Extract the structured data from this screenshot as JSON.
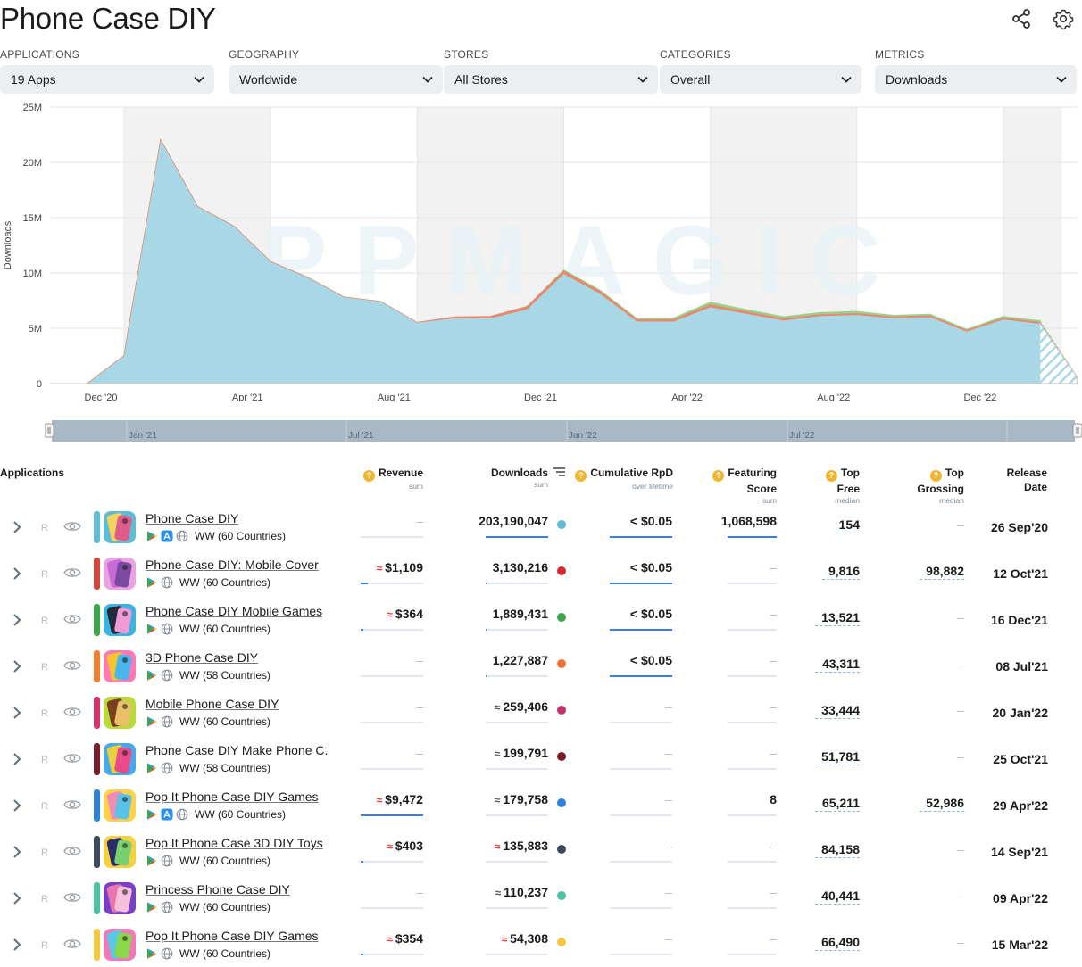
{
  "page": {
    "title": "Phone Case DIY"
  },
  "icons": {
    "share": "share-icon",
    "settings": "gear-icon"
  },
  "filters": [
    {
      "label": "APPLICATIONS",
      "value": "19 Apps"
    },
    {
      "label": "GEOGRAPHY",
      "value": "Worldwide"
    },
    {
      "label": "STORES",
      "value": "All Stores"
    },
    {
      "label": "CATEGORIES",
      "value": "Overall"
    },
    {
      "label": "METRICS",
      "value": "Downloads"
    }
  ],
  "chart_data": {
    "type": "area",
    "watermark": "APPMAGIC",
    "ylabel": "Downloads",
    "y_ticks": [
      "0",
      "5M",
      "10M",
      "15M",
      "20M",
      "25M"
    ],
    "ylim": [
      0,
      25000000
    ],
    "x_ticks": [
      "Dec '20",
      "Apr '21",
      "Aug '21",
      "Dec '21",
      "Apr '22",
      "Aug '22",
      "Dec '22"
    ],
    "x": [
      "2020-11",
      "2020-12",
      "2021-01",
      "2021-02",
      "2021-03",
      "2021-04",
      "2021-05",
      "2021-06",
      "2021-07",
      "2021-08",
      "2021-09",
      "2021-10",
      "2021-11",
      "2021-12",
      "2022-01",
      "2022-02",
      "2022-03",
      "2022-04",
      "2022-05",
      "2022-06",
      "2022-07",
      "2022-08",
      "2022-09",
      "2022-10",
      "2022-11",
      "2022-12",
      "2023-01",
      "2023-02"
    ],
    "series": [
      {
        "name": "Phone Case DIY",
        "color": "#a8d8e6",
        "values": [
          0,
          2500000,
          22000000,
          16000000,
          14200000,
          11000000,
          9600000,
          7800000,
          7400000,
          5500000,
          5900000,
          5900000,
          6700000,
          9900000,
          8100000,
          5600000,
          5600000,
          6900000,
          6300000,
          5700000,
          6100000,
          6200000,
          5900000,
          6000000,
          4700000,
          5800000,
          5400000,
          0
        ]
      },
      {
        "name": "Phone Case DIY: Mobile Cover",
        "color": "#e8886e",
        "values": [
          0,
          0,
          0,
          0,
          0,
          0,
          0,
          0,
          0,
          0,
          100000,
          150000,
          250000,
          250000,
          200000,
          150000,
          150000,
          200000,
          150000,
          150000,
          100000,
          100000,
          100000,
          100000,
          80000,
          100000,
          100000,
          0
        ]
      },
      {
        "name": "Phone Case DIY Mobile Games",
        "color": "#9bd18b",
        "values": [
          0,
          0,
          0,
          0,
          0,
          0,
          0,
          0,
          0,
          0,
          0,
          0,
          0,
          100000,
          100000,
          100000,
          150000,
          250000,
          200000,
          180000,
          200000,
          200000,
          150000,
          150000,
          100000,
          150000,
          150000,
          0
        ]
      }
    ],
    "navigator_labels": [
      "Jan '21",
      "Jul '21",
      "Jan '22",
      "Jul '22"
    ],
    "grid": true
  },
  "table": {
    "headers": {
      "applications": "Applications",
      "revenue": "Revenue",
      "revenue_sub": "sum",
      "downloads": "Downloads",
      "downloads_sub": "sum",
      "rpd": "Cumulative RpD",
      "rpd_sub": "over lifetime",
      "featuring_1": "Featuring",
      "featuring_2": "Score",
      "featuring_sub": "sum",
      "topfree_1": "Top",
      "topfree_2": "Free",
      "topfree_sub": "median",
      "topgrossing_1": "Top",
      "topgrossing_2": "Grossing",
      "topgrossing_sub": "median",
      "release_1": "Release",
      "release_2": "Date"
    },
    "rows": [
      {
        "name": "Phone Case DIY",
        "color": "#5fbcd3",
        "stores": [
          "google-play",
          "app-store",
          "web"
        ],
        "geo": "WW (60 Countries)",
        "revenue": "–",
        "revenue_fill": 0,
        "downloads": "203,190,047",
        "dl_approx": false,
        "dl_fill": 1.0,
        "dot": "#5fbcd3",
        "rpd": "< $0.05",
        "rpd_fill": 1.0,
        "featuring": "1,068,598",
        "feat_fill": 1.0,
        "top_free": "154",
        "top_grossing": "–",
        "release": "26 Sep'20",
        "icon_colors": [
          "#f4d35e",
          "#5fbcd3",
          "#e05a8b"
        ]
      },
      {
        "name": "Phone Case DIY: Mobile Cover",
        "color": "#d6453b",
        "stores": [
          "google-play",
          "web"
        ],
        "geo": "WW (60 Countries)",
        "revenue": "$1,109",
        "rev_approx": true,
        "revenue_fill": 0.12,
        "downloads": "3,130,216",
        "dl_approx": false,
        "dl_fill": 0.02,
        "dot": "#d62a2a",
        "rpd": "< $0.05",
        "rpd_fill": 1.0,
        "featuring": "–",
        "feat_fill": 0,
        "top_free": "9,816",
        "top_grossing": "98,882",
        "release": "12 Oct'21",
        "icon_colors": [
          "#c86bd6",
          "#e8a3e0",
          "#7a4aa0"
        ]
      },
      {
        "name": "Phone Case DIY Mobile Games",
        "color": "#3aa648",
        "stores": [
          "google-play",
          "web"
        ],
        "geo": "WW (60 Countries)",
        "revenue": "$364",
        "rev_approx": true,
        "revenue_fill": 0.04,
        "downloads": "1,889,431",
        "dl_approx": false,
        "dl_fill": 0.01,
        "dot": "#3aa648",
        "rpd": "< $0.05",
        "rpd_fill": 1.0,
        "featuring": "–",
        "feat_fill": 0,
        "top_free": "13,521",
        "top_grossing": "–",
        "release": "16 Dec'21",
        "icon_colors": [
          "#1f2b3a",
          "#3bb3e0",
          "#f09ad6"
        ]
      },
      {
        "name": "3D Phone Case DIY",
        "color": "#f08030",
        "stores": [
          "google-play",
          "web"
        ],
        "geo": "WW (58 Countries)",
        "revenue": "–",
        "revenue_fill": 0,
        "downloads": "1,227,887",
        "dl_approx": false,
        "dl_fill": 0.01,
        "dot": "#f07030",
        "rpd": "< $0.05",
        "rpd_fill": 1.0,
        "featuring": "–",
        "feat_fill": 0,
        "top_free": "43,311",
        "top_grossing": "–",
        "release": "08 Jul'21",
        "icon_colors": [
          "#f7c430",
          "#ff7ab5",
          "#4ab5e8"
        ]
      },
      {
        "name": "Mobile Phone Case DIY",
        "color": "#d6336c",
        "stores": [
          "google-play",
          "web"
        ],
        "geo": "WW (60 Countries)",
        "revenue": "–",
        "revenue_fill": 0,
        "downloads": "259,406",
        "dl_approx": true,
        "dl_fill": 0,
        "dot": "#c2336c",
        "rpd": "–",
        "rpd_fill": 0,
        "featuring": "–",
        "feat_fill": 0,
        "top_free": "33,444",
        "top_grossing": "–",
        "release": "20 Jan'22",
        "icon_colors": [
          "#7b3f20",
          "#b9dc3c",
          "#e8c06a"
        ]
      },
      {
        "name": "Phone Case DIY Make Phone C...",
        "color": "#7a1b2a",
        "stores": [
          "google-play",
          "web"
        ],
        "geo": "WW (58 Countries)",
        "revenue": "–",
        "revenue_fill": 0,
        "downloads": "199,791",
        "dl_approx": true,
        "dl_fill": 0,
        "dot": "#7a1b2a",
        "rpd": "–",
        "rpd_fill": 0,
        "featuring": "–",
        "feat_fill": 0,
        "top_free": "51,781",
        "top_grossing": "–",
        "release": "25 Oct'21",
        "icon_colors": [
          "#e8d040",
          "#4aa8e8",
          "#e84a8a"
        ]
      },
      {
        "name": "Pop It Phone Case DIY Games",
        "color": "#2f80d6",
        "stores": [
          "google-play",
          "app-store",
          "web"
        ],
        "geo": "WW (60 Countries)",
        "revenue": "$9,472",
        "rev_approx": true,
        "revenue_fill": 1.0,
        "downloads": "179,758",
        "dl_approx": true,
        "dl_fill": 0,
        "dot": "#2f80d6",
        "rpd": "–",
        "rpd_fill": 0,
        "featuring": "8",
        "feat_fill": 0,
        "top_free": "65,211",
        "top_grossing": "52,986",
        "release": "29 Apr'22",
        "icon_colors": [
          "#f28db2",
          "#ffd24a",
          "#59c2e8"
        ]
      },
      {
        "name": "Pop It Phone Case 3D DIY Toys",
        "color": "#3d4a5c",
        "stores": [
          "google-play",
          "web"
        ],
        "geo": "WW (60 Countries)",
        "revenue": "$403",
        "rev_approx": true,
        "revenue_fill": 0.04,
        "downloads": "135,883",
        "dl_approx": true,
        "dl_approx_red": true,
        "dl_fill": 0,
        "dot": "#3d4a5c",
        "rpd": "–",
        "rpd_fill": 0,
        "featuring": "–",
        "feat_fill": 0,
        "top_free": "84,158",
        "top_grossing": "–",
        "release": "14 Sep'21",
        "icon_colors": [
          "#2b2b6a",
          "#f5d040",
          "#7ad070"
        ]
      },
      {
        "name": "Princess Phone Case DIY",
        "color": "#4cc3a0",
        "stores": [
          "google-play",
          "web"
        ],
        "geo": "WW (60 Countries)",
        "revenue": "–",
        "revenue_fill": 0,
        "downloads": "110,237",
        "dl_approx": true,
        "dl_fill": 0,
        "dot": "#4cc3a0",
        "rpd": "–",
        "rpd_fill": 0,
        "featuring": "–",
        "feat_fill": 0,
        "top_free": "40,441",
        "top_grossing": "–",
        "release": "09 Apr'22",
        "icon_colors": [
          "#e874b0",
          "#7a3fc8",
          "#f5c0dc"
        ]
      },
      {
        "name": "Pop It Phone Case DIY Games",
        "color": "#f5c842",
        "stores": [
          "google-play",
          "web"
        ],
        "geo": "WW (60 Countries)",
        "revenue": "$354",
        "rev_approx": true,
        "revenue_fill": 0.04,
        "downloads": "54,308",
        "dl_approx": true,
        "dl_approx_red": true,
        "dl_fill": 0,
        "dot": "#f5c842",
        "rpd": "–",
        "rpd_fill": 0,
        "featuring": "–",
        "feat_fill": 0,
        "top_free": "66,490",
        "top_grossing": "–",
        "release": "15 Mar'22",
        "icon_colors": [
          "#5ac8e8",
          "#f07ab8",
          "#8ad84a"
        ]
      }
    ]
  }
}
